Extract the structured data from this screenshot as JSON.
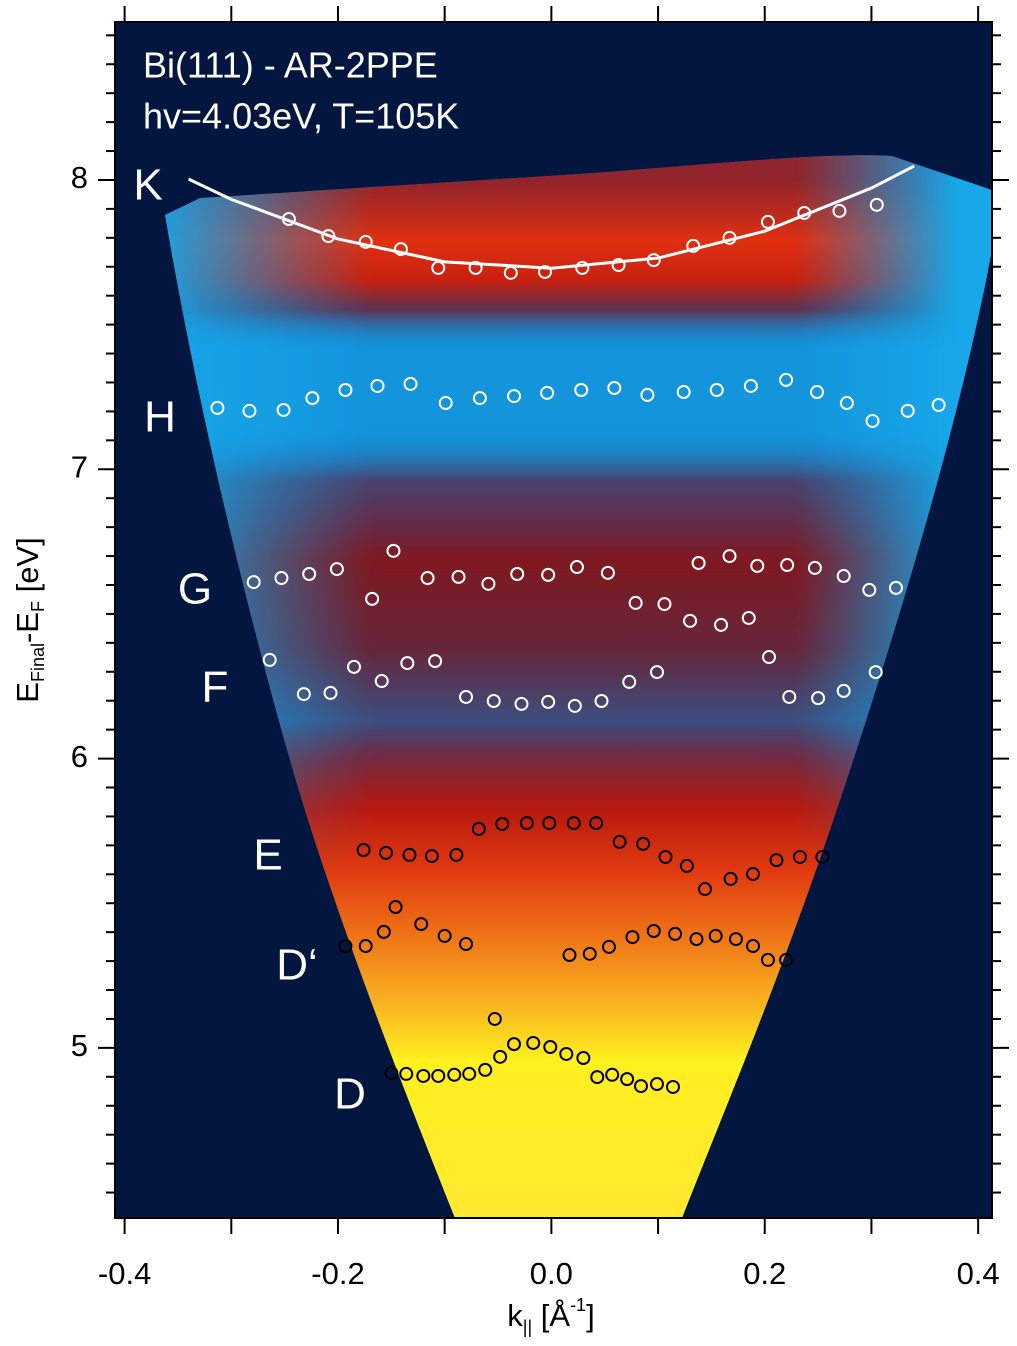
{
  "chart_data": {
    "type": "scatter",
    "title": "Bi(111) - AR-2PPE",
    "subtitle": "hv=4.03eV, T=105K",
    "xlabel": {
      "text": "k",
      "sub": "||",
      "unit": " [Å",
      "sup": "-1",
      "close": "]"
    },
    "ylabel": {
      "text": "E",
      "sub": "Final",
      "mid": "-E",
      "sub2": "F",
      "unit": " [eV]"
    },
    "xlim": [
      -0.409,
      0.413
    ],
    "ylim": [
      4.412,
      8.546
    ],
    "xticks": [
      -0.4,
      -0.2,
      {
        "value": 0,
        "label": "0.0"
      },
      0.2,
      0.4
    ],
    "xminorticks": [
      -0.3,
      -0.1,
      0.1,
      0.3
    ],
    "yticks": [
      5,
      6,
      7,
      8
    ],
    "yminorticks": [
      4.5,
      4.6,
      4.7,
      4.8,
      4.9,
      5.1,
      5.2,
      5.3,
      5.4,
      5.5,
      5.6,
      5.7,
      5.8,
      5.9,
      6.1,
      6.2,
      6.3,
      6.4,
      6.5,
      6.6,
      6.7,
      6.8,
      6.9,
      7.1,
      7.2,
      7.3,
      7.4,
      7.5,
      7.6,
      7.7,
      7.8,
      7.9,
      8.1,
      8.2,
      8.3,
      8.4,
      8.5
    ],
    "background": "#021640",
    "series": [
      {
        "name": "K",
        "color": "#ffffff",
        "x": [
          -0.246,
          -0.209,
          -0.174,
          -0.141,
          -0.106,
          -0.071,
          -0.038,
          -0.006,
          0.029,
          0.063,
          0.096,
          0.133,
          0.167,
          0.203,
          0.237,
          0.27,
          0.305
        ],
        "values": [
          7.865,
          7.806,
          7.786,
          7.761,
          7.696,
          7.696,
          7.679,
          7.682,
          7.696,
          7.706,
          7.723,
          7.772,
          7.8,
          7.855,
          7.886,
          7.893,
          7.914
        ]
      },
      {
        "name": "H",
        "color": "#ffffff",
        "x": [
          -0.313,
          -0.283,
          -0.251,
          -0.224,
          -0.193,
          -0.163,
          -0.132,
          -0.099,
          -0.067,
          -0.035,
          -0.004,
          0.028,
          0.059,
          0.09,
          0.124,
          0.155,
          0.187,
          0.22,
          0.249,
          0.277,
          0.301,
          0.334,
          0.363
        ],
        "values": [
          7.212,
          7.202,
          7.205,
          7.246,
          7.274,
          7.288,
          7.295,
          7.229,
          7.246,
          7.253,
          7.264,
          7.274,
          7.281,
          7.257,
          7.267,
          7.274,
          7.288,
          7.309,
          7.267,
          7.229,
          7.167,
          7.202,
          7.222
        ]
      },
      {
        "name": "G",
        "color": "#ffffff",
        "x": [
          -0.279,
          -0.253,
          -0.227,
          -0.201,
          -0.168,
          -0.148,
          -0.116,
          -0.087,
          -0.059,
          -0.032,
          -0.003,
          0.024,
          0.053,
          0.079,
          0.106,
          0.13,
          0.138,
          0.159,
          0.167,
          0.185,
          0.193,
          0.221,
          0.247,
          0.274,
          0.298,
          0.323
        ],
        "values": [
          6.61,
          6.624,
          6.638,
          6.655,
          6.552,
          6.718,
          6.624,
          6.628,
          6.604,
          6.638,
          6.635,
          6.662,
          6.642,
          6.538,
          6.534,
          6.476,
          6.676,
          6.462,
          6.7,
          6.486,
          6.666,
          6.669,
          6.659,
          6.631,
          6.583,
          6.59
        ]
      },
      {
        "name": "F",
        "color": "#ffffff",
        "x": [
          -0.264,
          -0.232,
          -0.207,
          -0.185,
          -0.159,
          -0.135,
          -0.109,
          -0.08,
          -0.054,
          -0.028,
          -0.003,
          0.022,
          0.047,
          0.073,
          0.099,
          0.204,
          0.223,
          0.25,
          0.274,
          0.304
        ],
        "values": [
          6.341,
          6.223,
          6.227,
          6.317,
          6.268,
          6.33,
          6.337,
          6.213,
          6.199,
          6.189,
          6.196,
          6.182,
          6.199,
          6.265,
          6.299,
          6.351,
          6.213,
          6.209,
          6.234,
          6.299
        ]
      },
      {
        "name": "E",
        "color": "#000000",
        "x": [
          -0.176,
          -0.155,
          -0.133,
          -0.112,
          -0.089,
          -0.068,
          -0.046,
          -0.023,
          -0.002,
          0.021,
          0.042,
          0.064,
          0.086,
          0.107,
          0.127,
          0.144,
          0.168,
          0.189,
          0.211,
          0.233,
          0.254
        ],
        "values": [
          5.684,
          5.674,
          5.667,
          5.663,
          5.667,
          5.757,
          5.774,
          5.777,
          5.777,
          5.777,
          5.777,
          5.712,
          5.705,
          5.66,
          5.629,
          5.549,
          5.584,
          5.601,
          5.649,
          5.66,
          5.66
        ]
      },
      {
        "name": "D‘",
        "color": "#000000",
        "x": [
          -0.193,
          -0.174,
          -0.157,
          -0.146,
          -0.122,
          -0.1,
          -0.08,
          0.017,
          0.036,
          0.054,
          0.076,
          0.096,
          0.116,
          0.136,
          0.154,
          0.173,
          0.189,
          0.203,
          0.22
        ],
        "values": [
          5.352,
          5.352,
          5.401,
          5.487,
          5.428,
          5.387,
          5.359,
          5.321,
          5.325,
          5.349,
          5.383,
          5.404,
          5.394,
          5.376,
          5.387,
          5.376,
          5.352,
          5.304,
          5.304
        ]
      },
      {
        "name": "D",
        "color": "#000000",
        "x": [
          -0.15,
          -0.136,
          -0.12,
          -0.106,
          -0.091,
          -0.077,
          -0.062,
          -0.053,
          -0.048,
          -0.035,
          -0.017,
          -0.001,
          0.014,
          0.03,
          0.043,
          0.057,
          0.071,
          0.084,
          0.099,
          0.114
        ],
        "values": [
          4.913,
          4.91,
          4.903,
          4.903,
          4.907,
          4.91,
          4.924,
          5.1,
          4.969,
          5.013,
          5.017,
          5.003,
          4.979,
          4.965,
          4.899,
          4.907,
          4.892,
          4.868,
          4.875,
          4.865
        ]
      }
    ],
    "fit": {
      "color": "#ffffff",
      "x": [
        -0.34,
        -0.3,
        -0.2,
        -0.1,
        0,
        0.1,
        0.2,
        0.3,
        0.34
      ],
      "values": [
        8.003,
        7.933,
        7.796,
        7.717,
        7.695,
        7.73,
        7.823,
        7.972,
        8.048
      ]
    }
  }
}
